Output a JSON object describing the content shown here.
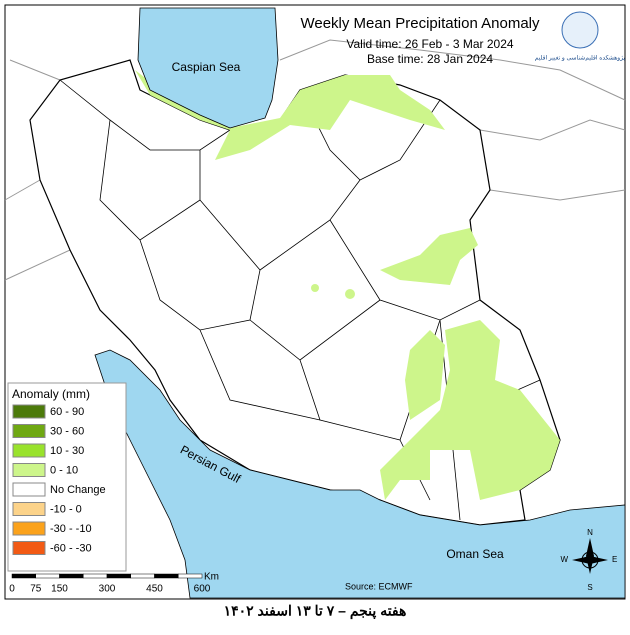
{
  "header": {
    "title": "Weekly Mean Precipitation Anomaly",
    "valid_time": "Valid time:  26 Feb - 3 Mar 2024",
    "base_time": "Base time: 28 Jan 2024",
    "logo_text": "پژوهشکده اقلیم‌شناسی و تغییر اقلیم"
  },
  "labels": {
    "caspian": "Caspian Sea",
    "gulf": "Persian Gulf",
    "oman": "Oman Sea"
  },
  "legend": {
    "title": "Anomaly (mm)",
    "items": [
      {
        "label": "60 - 90",
        "color": "#4c7a0a"
      },
      {
        "label": "30 - 60",
        "color": "#6fa812"
      },
      {
        "label": "10 - 30",
        "color": "#99e22c"
      },
      {
        "label": "0 - 10",
        "color": "#cdf58b"
      },
      {
        "label": "No Change",
        "color": "#ffffff"
      },
      {
        "label": "-10 - 0",
        "color": "#fcd38a"
      },
      {
        "label": "-30 - -10",
        "color": "#fba21b"
      },
      {
        "label": "-60 - -30",
        "color": "#f25a14"
      }
    ]
  },
  "scale_bar": {
    "ticks": [
      "0",
      "75",
      "150",
      "300",
      "450",
      "600"
    ],
    "unit": "Km"
  },
  "compass": {
    "n": "N",
    "e": "E",
    "s": "S",
    "w": "W"
  },
  "source": "Source: ECMWF",
  "footer": "هفته پنجم – ۷ تا ۱۳ اسفند ۱۴۰۲"
}
